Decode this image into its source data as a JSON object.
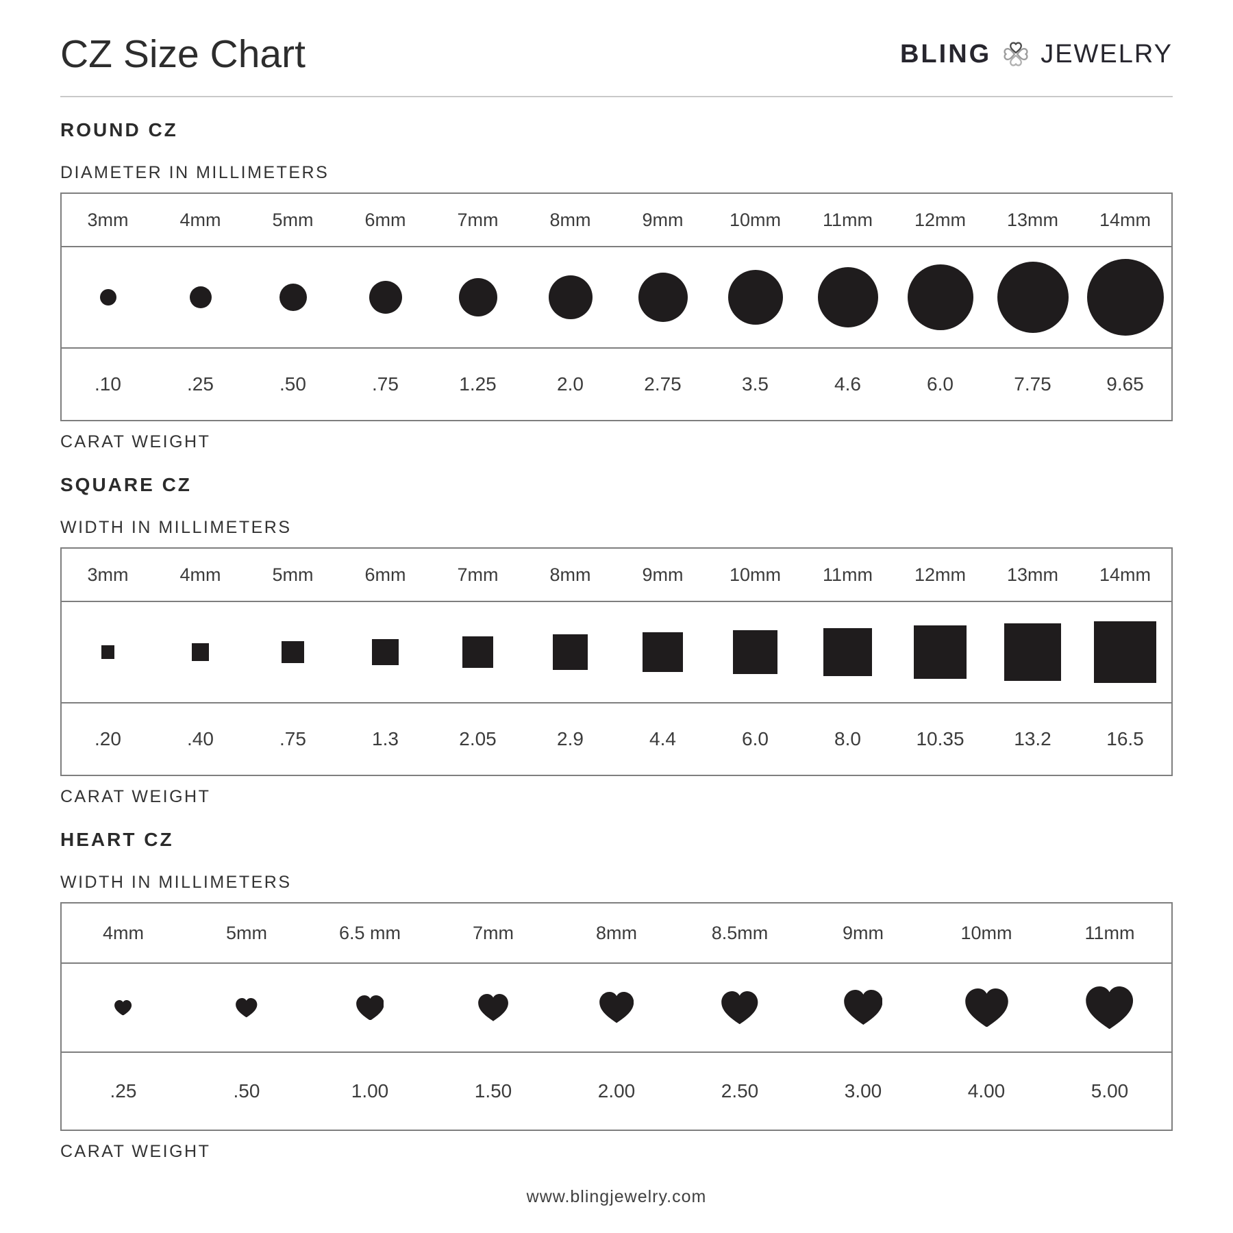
{
  "header": {
    "title": "CZ Size Chart",
    "brand": {
      "left": "BLING",
      "right": "JEWELRY",
      "icon": "four-heart-clover-icon"
    }
  },
  "footer": {
    "url": "www.blingjewelry.com"
  },
  "colors": {
    "shape": "#1f1c1d",
    "table_border": "#7e7e7e",
    "text_dark": "#2b2b2b",
    "text_mid": "#3c3c3c",
    "logo_gray": "#9c9c9c"
  },
  "sections": [
    {
      "id": "round",
      "title": "ROUND CZ",
      "dimension_label": "DIAMETER IN MILLIMETERS",
      "weight_label": "CARAT WEIGHT",
      "shape": "circle",
      "columns": [
        {
          "size_label": "3mm",
          "mm": 3,
          "carat": ".10"
        },
        {
          "size_label": "4mm",
          "mm": 4,
          "carat": ".25"
        },
        {
          "size_label": "5mm",
          "mm": 5,
          "carat": ".50"
        },
        {
          "size_label": "6mm",
          "mm": 6,
          "carat": ".75"
        },
        {
          "size_label": "7mm",
          "mm": 7,
          "carat": "1.25"
        },
        {
          "size_label": "8mm",
          "mm": 8,
          "carat": "2.0"
        },
        {
          "size_label": "9mm",
          "mm": 9,
          "carat": "2.75"
        },
        {
          "size_label": "10mm",
          "mm": 10,
          "carat": "3.5"
        },
        {
          "size_label": "11mm",
          "mm": 11,
          "carat": "4.6"
        },
        {
          "size_label": "12mm",
          "mm": 12,
          "carat": "6.0"
        },
        {
          "size_label": "13mm",
          "mm": 13,
          "carat": "7.75"
        },
        {
          "size_label": "14mm",
          "mm": 14,
          "carat": "9.65"
        }
      ]
    },
    {
      "id": "square",
      "title": "SQUARE CZ",
      "dimension_label": "WIDTH IN MILLIMETERS",
      "weight_label": "CARAT WEIGHT",
      "shape": "square",
      "columns": [
        {
          "size_label": "3mm",
          "mm": 3,
          "carat": ".20"
        },
        {
          "size_label": "4mm",
          "mm": 4,
          "carat": ".40"
        },
        {
          "size_label": "5mm",
          "mm": 5,
          "carat": ".75"
        },
        {
          "size_label": "6mm",
          "mm": 6,
          "carat": "1.3"
        },
        {
          "size_label": "7mm",
          "mm": 7,
          "carat": "2.05"
        },
        {
          "size_label": "8mm",
          "mm": 8,
          "carat": "2.9"
        },
        {
          "size_label": "9mm",
          "mm": 9,
          "carat": "4.4"
        },
        {
          "size_label": "10mm",
          "mm": 10,
          "carat": "6.0"
        },
        {
          "size_label": "11mm",
          "mm": 11,
          "carat": "8.0"
        },
        {
          "size_label": "12mm",
          "mm": 12,
          "carat": "10.35"
        },
        {
          "size_label": "13mm",
          "mm": 13,
          "carat": "13.2"
        },
        {
          "size_label": "14mm",
          "mm": 14,
          "carat": "16.5"
        }
      ]
    },
    {
      "id": "heart",
      "title": "HEART CZ",
      "dimension_label": "WIDTH IN MILLIMETERS",
      "weight_label": "CARAT WEIGHT",
      "shape": "heart",
      "columns": [
        {
          "size_label": "4mm",
          "mm": 4,
          "carat": ".25"
        },
        {
          "size_label": "5mm",
          "mm": 5,
          "carat": ".50"
        },
        {
          "size_label": "6.5 mm",
          "mm": 6.5,
          "carat": "1.00"
        },
        {
          "size_label": "7mm",
          "mm": 7,
          "carat": "1.50"
        },
        {
          "size_label": "8mm",
          "mm": 8,
          "carat": "2.00"
        },
        {
          "size_label": "8.5mm",
          "mm": 8.5,
          "carat": "2.50"
        },
        {
          "size_label": "9mm",
          "mm": 9,
          "carat": "3.00"
        },
        {
          "size_label": "10mm",
          "mm": 10,
          "carat": "4.00"
        },
        {
          "size_label": "11mm",
          "mm": 11,
          "carat": "5.00"
        }
      ]
    }
  ],
  "chart_data": [
    {
      "type": "table",
      "title": "ROUND CZ",
      "xlabel": "DIAMETER IN MILLIMETERS",
      "ylabel": "CARAT WEIGHT",
      "categories": [
        "3mm",
        "4mm",
        "5mm",
        "6mm",
        "7mm",
        "8mm",
        "9mm",
        "10mm",
        "11mm",
        "12mm",
        "13mm",
        "14mm"
      ],
      "series": [
        {
          "name": "carat weight",
          "values": [
            0.1,
            0.25,
            0.5,
            0.75,
            1.25,
            2.0,
            2.75,
            3.5,
            4.6,
            6.0,
            7.75,
            9.65
          ]
        }
      ]
    },
    {
      "type": "table",
      "title": "SQUARE CZ",
      "xlabel": "WIDTH IN MILLIMETERS",
      "ylabel": "CARAT WEIGHT",
      "categories": [
        "3mm",
        "4mm",
        "5mm",
        "6mm",
        "7mm",
        "8mm",
        "9mm",
        "10mm",
        "11mm",
        "12mm",
        "13mm",
        "14mm"
      ],
      "series": [
        {
          "name": "carat weight",
          "values": [
            0.2,
            0.4,
            0.75,
            1.3,
            2.05,
            2.9,
            4.4,
            6.0,
            8.0,
            10.35,
            13.2,
            16.5
          ]
        }
      ]
    },
    {
      "type": "table",
      "title": "HEART CZ",
      "xlabel": "WIDTH IN MILLIMETERS",
      "ylabel": "CARAT WEIGHT",
      "categories": [
        "4mm",
        "5mm",
        "6.5 mm",
        "7mm",
        "8mm",
        "8.5mm",
        "9mm",
        "10mm",
        "11mm"
      ],
      "series": [
        {
          "name": "carat weight",
          "values": [
            0.25,
            0.5,
            1.0,
            1.5,
            2.0,
            2.5,
            3.0,
            4.0,
            5.0
          ]
        }
      ]
    }
  ]
}
